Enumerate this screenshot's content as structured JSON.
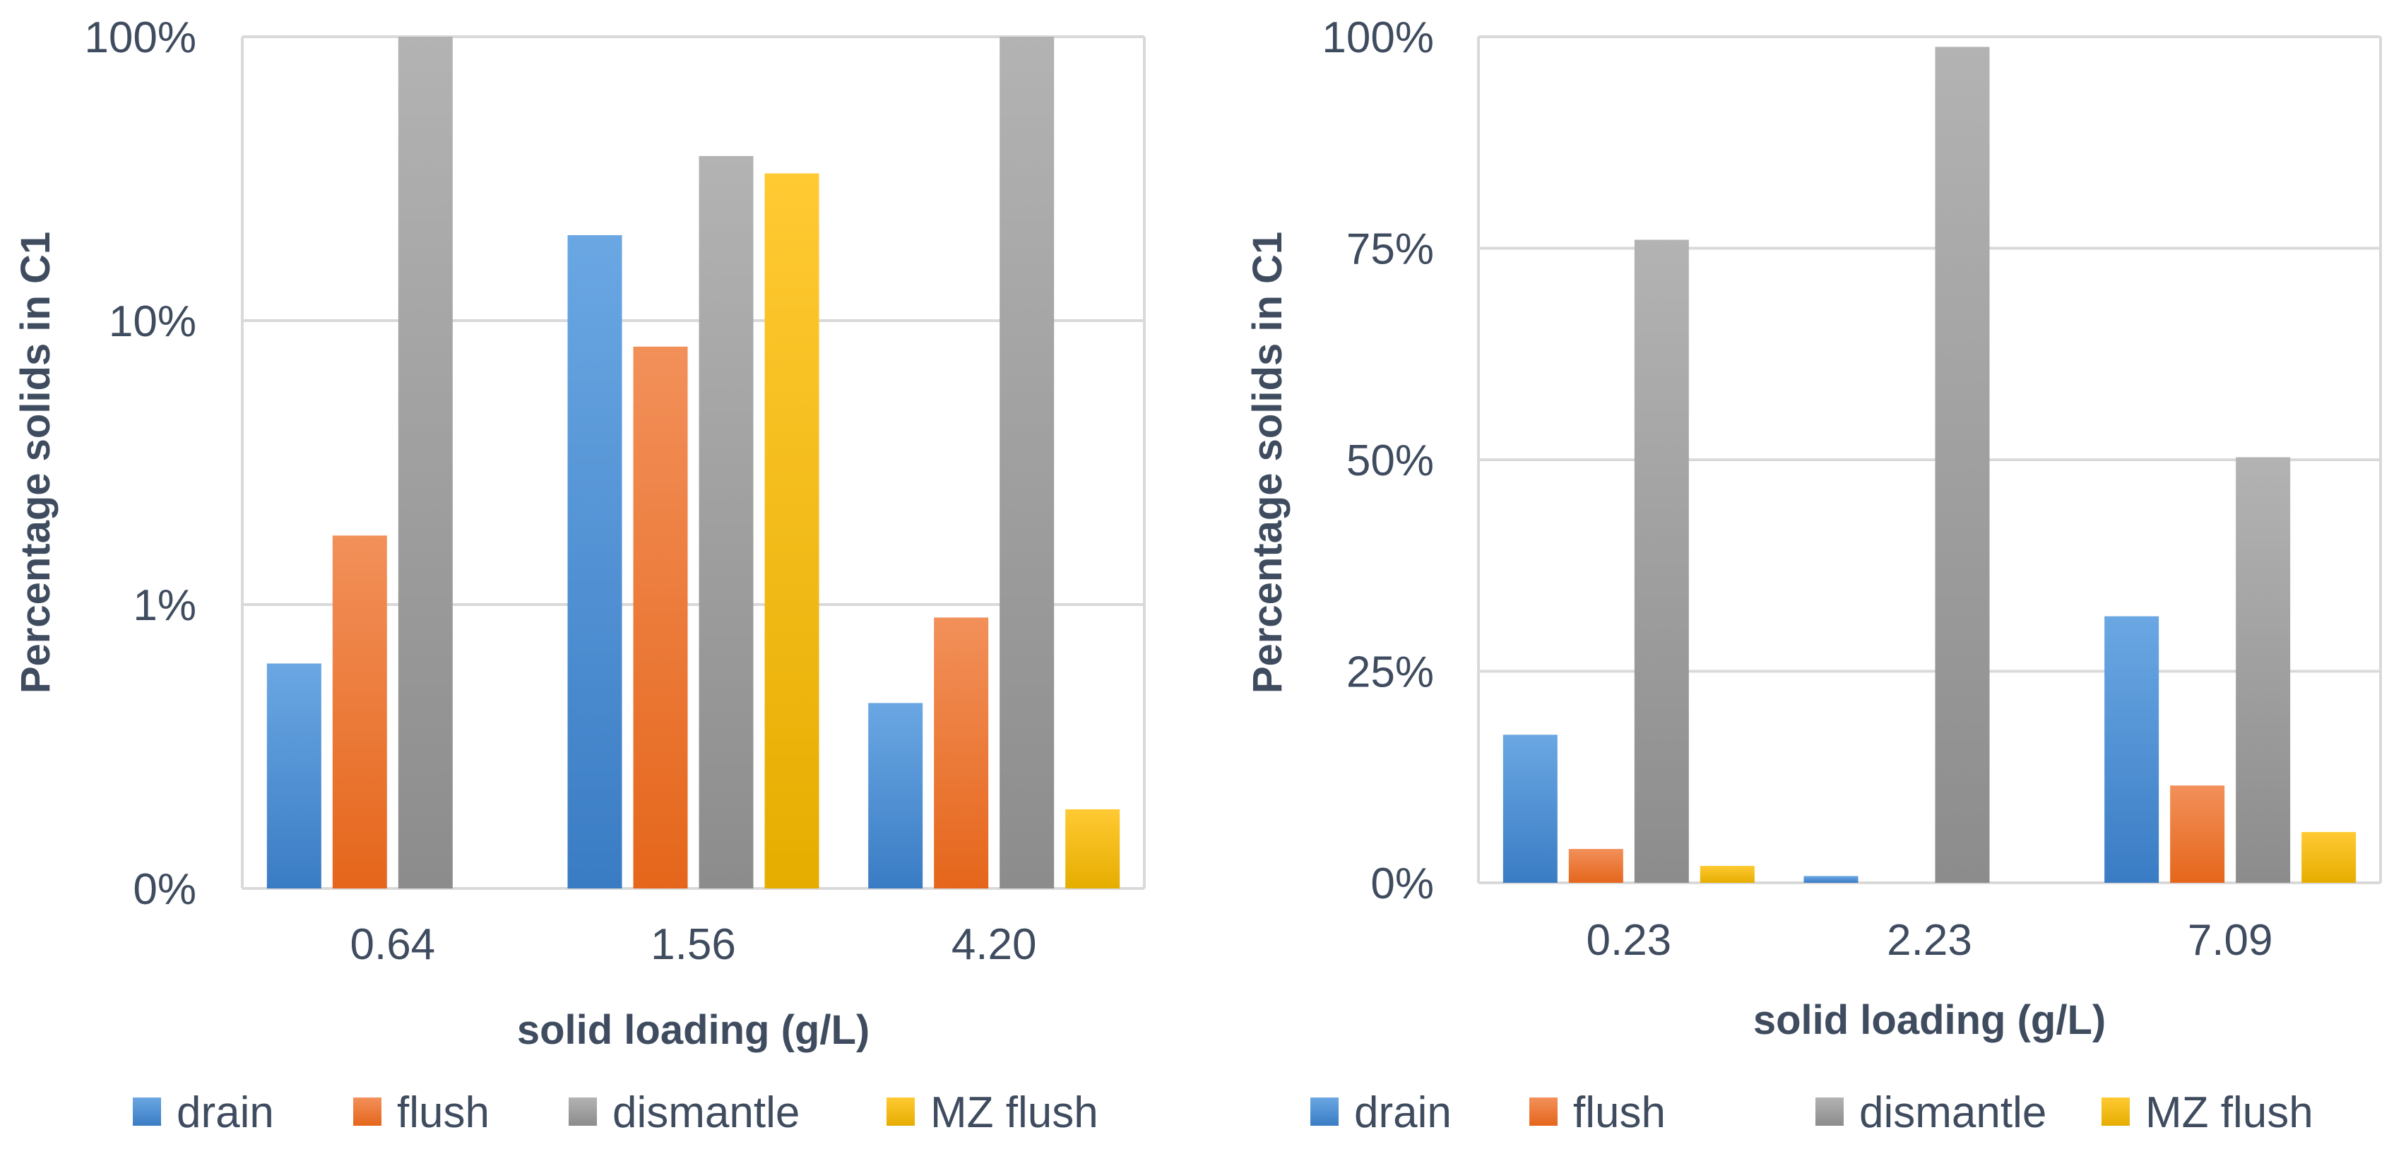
{
  "chart_data": [
    {
      "type": "bar",
      "scale": "log",
      "title": "",
      "xlabel": "solid loading (g/L)",
      "ylabel": "Percentage solids in C1",
      "categories": [
        "0.64",
        "1.56",
        "4.20"
      ],
      "ytick_labels": [
        "0%",
        "1%",
        "10%",
        "100%"
      ],
      "series": [
        {
          "name": "drain",
          "values": [
            0.62,
            20,
            0.45
          ]
        },
        {
          "name": "flush",
          "values": [
            1.75,
            8.1,
            0.9
          ]
        },
        {
          "name": "dismantle",
          "values": [
            100,
            38,
            100
          ]
        },
        {
          "name": "MZ flush",
          "values": [
            null,
            33,
            0.19
          ]
        }
      ],
      "colors": {
        "drain": "#4a8fd6",
        "flush": "#ec7429",
        "dismantle": "#a0a0a0",
        "MZ flush": "#ffc000"
      },
      "grid": true,
      "legend": "bottom"
    },
    {
      "type": "bar",
      "scale": "linear",
      "title": "",
      "xlabel": "solid loading (g/L)",
      "ylabel": "Percentage solids in C1",
      "categories": [
        "0.23",
        "2.23",
        "7.09"
      ],
      "ylim": [
        0,
        100
      ],
      "ytick_labels": [
        "0%",
        "25%",
        "50%",
        "75%",
        "100%"
      ],
      "series": [
        {
          "name": "drain",
          "values": [
            17.5,
            0.8,
            31.5
          ]
        },
        {
          "name": "flush",
          "values": [
            4,
            0,
            11.5
          ]
        },
        {
          "name": "dismantle",
          "values": [
            76,
            98.8,
            50.3
          ]
        },
        {
          "name": "MZ flush",
          "values": [
            2,
            0,
            6
          ]
        }
      ],
      "colors": {
        "drain": "#4a8fd6",
        "flush": "#ec7429",
        "dismantle": "#a0a0a0",
        "MZ flush": "#ffc000"
      },
      "grid": true,
      "legend": "bottom"
    }
  ]
}
